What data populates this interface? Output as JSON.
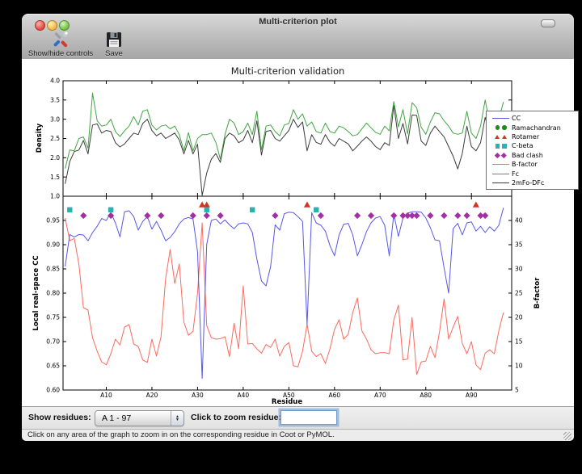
{
  "window": {
    "title": "Multi-criterion plot"
  },
  "toolbar": {
    "buttons": [
      {
        "label": "Show/hide controls",
        "icon": "tools-icon"
      },
      {
        "label": "Save",
        "icon": "save-icon"
      }
    ]
  },
  "controls": {
    "show_residues_label": "Show residues:",
    "residue_range_value": "A  1 - 97",
    "zoom_residue_label": "Click to zoom residue:",
    "zoom_residue_value": ""
  },
  "status_bar": {
    "text": "Click on any area of the graph to zoom in on the corresponding residue in Coot or PyMOL."
  },
  "chart_data": {
    "type": "line",
    "title": "Multi-criterion validation",
    "x": {
      "label": "Residue",
      "range": [
        1,
        97
      ],
      "ticks": [
        {
          "r": 10,
          "label": "A10"
        },
        {
          "r": 20,
          "label": "A20"
        },
        {
          "r": 30,
          "label": "A30"
        },
        {
          "r": 40,
          "label": "A40"
        },
        {
          "r": 50,
          "label": "A50"
        },
        {
          "r": 60,
          "label": "A60"
        },
        {
          "r": 70,
          "label": "A70"
        },
        {
          "r": 80,
          "label": "A80"
        },
        {
          "r": 90,
          "label": "A90"
        }
      ]
    },
    "top_panel": {
      "ylabel": "Density",
      "ylim": [
        1.0,
        4.0
      ],
      "yticks": [
        1.0,
        1.5,
        2.0,
        2.5,
        3.0,
        3.5,
        4.0
      ],
      "series": [
        {
          "name": "2mFo-DFc",
          "color": "#3c3c3c",
          "values": [
            1.32,
            1.9,
            2.16,
            2.2,
            2.45,
            2.1,
            2.85,
            2.88,
            2.64,
            2.71,
            2.68,
            2.39,
            2.28,
            2.36,
            2.5,
            2.64,
            2.6,
            2.89,
            3.0,
            2.71,
            2.57,
            2.64,
            2.5,
            2.57,
            2.64,
            2.46,
            2.1,
            2.45,
            2.1,
            2.35,
            1.02,
            1.6,
            1.96,
            2.11,
            1.88,
            2.5,
            2.64,
            2.57,
            2.39,
            2.46,
            2.71,
            2.39,
            2.96,
            2.07,
            2.68,
            2.71,
            2.5,
            2.43,
            2.57,
            2.71,
            3.0,
            2.79,
            2.93,
            2.18,
            2.6,
            2.4,
            2.35,
            2.6,
            2.4,
            2.3,
            2.5,
            2.43,
            2.36,
            2.18,
            2.3,
            2.43,
            2.54,
            2.43,
            2.29,
            2.21,
            2.39,
            2.32,
            3.36,
            2.5,
            2.89,
            2.36,
            3.11,
            3.1,
            2.43,
            2.32,
            2.64,
            2.82,
            2.68,
            2.54,
            2.29,
            2.04,
            1.71,
            2.11,
            2.82,
            2.29,
            2.18,
            2.39,
            3.05,
            2.61,
            2.46,
            2.68,
            3.1
          ]
        },
        {
          "name": "Fc",
          "color": "#42a542",
          "values": [
            1.72,
            2.2,
            2.18,
            2.5,
            2.54,
            2.25,
            3.68,
            2.96,
            2.82,
            2.85,
            3.0,
            2.68,
            2.55,
            2.7,
            2.82,
            3.07,
            2.85,
            3.21,
            3.25,
            2.85,
            2.72,
            2.82,
            2.85,
            2.75,
            2.82,
            2.6,
            2.18,
            2.65,
            2.18,
            2.5,
            2.6,
            2.6,
            2.64,
            2.4,
            1.96,
            2.6,
            3.0,
            2.9,
            2.6,
            2.68,
            2.9,
            2.6,
            3.21,
            2.2,
            2.82,
            2.85,
            2.68,
            2.57,
            2.85,
            2.89,
            3.25,
            3.0,
            3.14,
            2.82,
            2.93,
            2.68,
            2.64,
            2.9,
            2.68,
            2.64,
            2.82,
            2.78,
            2.68,
            2.57,
            2.6,
            2.75,
            2.9,
            2.78,
            2.66,
            2.61,
            2.82,
            2.7,
            3.46,
            2.8,
            3.25,
            2.62,
            3.43,
            3.3,
            2.79,
            2.61,
            2.93,
            3.17,
            3.14,
            2.96,
            2.82,
            2.64,
            2.61,
            2.64,
            3.21,
            2.64,
            2.5,
            2.82,
            3.5,
            2.9,
            2.79,
            3.0,
            3.45
          ]
        }
      ]
    },
    "bottom_panel": {
      "ylabel_left": "Local real-space CC",
      "ylim_left": [
        0.6,
        1.0
      ],
      "yticks_left": [
        0.6,
        0.65,
        0.7,
        0.75,
        0.8,
        0.85,
        0.9,
        0.95
      ],
      "ylabel_right": "B-factor",
      "ylim_right": [
        5,
        45
      ],
      "yticks_right": [
        5,
        10,
        15,
        20,
        25,
        30,
        35,
        40
      ],
      "series": [
        {
          "name": "B-factor",
          "axis": "right",
          "color": "#fb6a5e",
          "values": [
            40.5,
            35.8,
            36.3,
            31.0,
            22.0,
            21.5,
            15.8,
            13.0,
            10.8,
            10.2,
            12.5,
            15.5,
            14.3,
            18.0,
            18.5,
            14.5,
            14.0,
            11.2,
            10.7,
            15.5,
            12.0,
            16.0,
            28.0,
            34.0,
            27.0,
            31.0,
            19.0,
            16.3,
            17.1,
            25.0,
            39.5,
            18.3,
            15.8,
            15.5,
            15.6,
            16.0,
            11.9,
            18.8,
            13.5,
            26.5,
            14.5,
            14.6,
            13.5,
            12.6,
            14.4,
            13.8,
            15.5,
            12.0,
            14.0,
            14.8,
            10.0,
            9.8,
            13.0,
            18.6,
            13.0,
            11.9,
            12.5,
            10.5,
            13.5,
            17.5,
            19.5,
            15.5,
            16.5,
            21.0,
            24.0,
            17.2,
            15.5,
            13.3,
            12.5,
            12.7,
            12.7,
            12.5,
            19.5,
            22.5,
            11.2,
            11.4,
            20.0,
            8.2,
            10.8,
            11.0,
            14.0,
            11.7,
            17.0,
            23.8,
            15.5,
            18.0,
            20.2,
            14.6,
            12.5,
            15.0,
            10.2,
            9.2,
            12.6,
            13.3,
            12.5,
            17.2,
            21.0
          ]
        },
        {
          "name": "CC",
          "axis": "left",
          "color": "#5757e8",
          "values": [
            0.855,
            0.921,
            0.916,
            0.921,
            0.92,
            0.908,
            0.925,
            0.938,
            0.954,
            0.95,
            0.966,
            0.945,
            0.916,
            0.968,
            0.97,
            0.958,
            0.93,
            0.948,
            0.958,
            0.932,
            0.948,
            0.93,
            0.908,
            0.915,
            0.927,
            0.943,
            0.953,
            0.956,
            0.953,
            0.885,
            0.624,
            0.9,
            0.95,
            0.953,
            0.943,
            0.951,
            0.941,
            0.933,
            0.943,
            0.945,
            0.943,
            0.925,
            0.87,
            0.825,
            0.815,
            0.855,
            0.941,
            0.93,
            0.964,
            0.967,
            0.966,
            0.958,
            0.948,
            0.735,
            0.966,
            0.945,
            0.94,
            0.928,
            0.898,
            0.877,
            0.92,
            0.942,
            0.944,
            0.92,
            0.877,
            0.9,
            0.927,
            0.945,
            0.955,
            0.958,
            0.94,
            0.877,
            0.963,
            0.917,
            0.955,
            0.965,
            0.968,
            0.968,
            0.967,
            0.955,
            0.935,
            0.91,
            0.908,
            0.852,
            0.8,
            0.933,
            0.944,
            0.92,
            0.945,
            0.947,
            0.928,
            0.938,
            0.925,
            0.937,
            0.928,
            0.94,
            0.976
          ]
        }
      ],
      "markers": [
        {
          "name": "Rotamer",
          "shape": "triangle",
          "color": "#d23420",
          "y_cc": 0.982,
          "residues": [
            31,
            32,
            54,
            91
          ]
        },
        {
          "name": "C-beta",
          "shape": "square",
          "color": "#27b4ae",
          "y_cc": 0.972,
          "residues": [
            2,
            11,
            32,
            42,
            56
          ]
        },
        {
          "name": "Bad clash",
          "shape": "diamond",
          "color": "#a230a2",
          "y_cc": 0.96,
          "residues": [
            5,
            11,
            19,
            22,
            29,
            32,
            35,
            47,
            57,
            65,
            68,
            73,
            75,
            76,
            77,
            78,
            81,
            84,
            87,
            89,
            92,
            93
          ]
        }
      ]
    },
    "legend": {
      "position": "upper right",
      "entries": [
        {
          "label": "CC",
          "type": "line",
          "color": "#5757e8"
        },
        {
          "label": "Ramachandran",
          "type": "circle",
          "color": "#1e8c1e"
        },
        {
          "label": "Rotamer",
          "type": "triangle",
          "color": "#d23420"
        },
        {
          "label": "C-beta",
          "type": "square",
          "color": "#27b4ae"
        },
        {
          "label": "Bad clash",
          "type": "diamond",
          "color": "#a230a2"
        },
        {
          "label": "B-factor",
          "type": "line",
          "color": "#fb6a5e"
        },
        {
          "label": "Fc",
          "type": "line",
          "color": "#42a542"
        },
        {
          "label": "2mFo-DFc",
          "type": "line",
          "color": "#3c3c3c"
        }
      ]
    }
  }
}
